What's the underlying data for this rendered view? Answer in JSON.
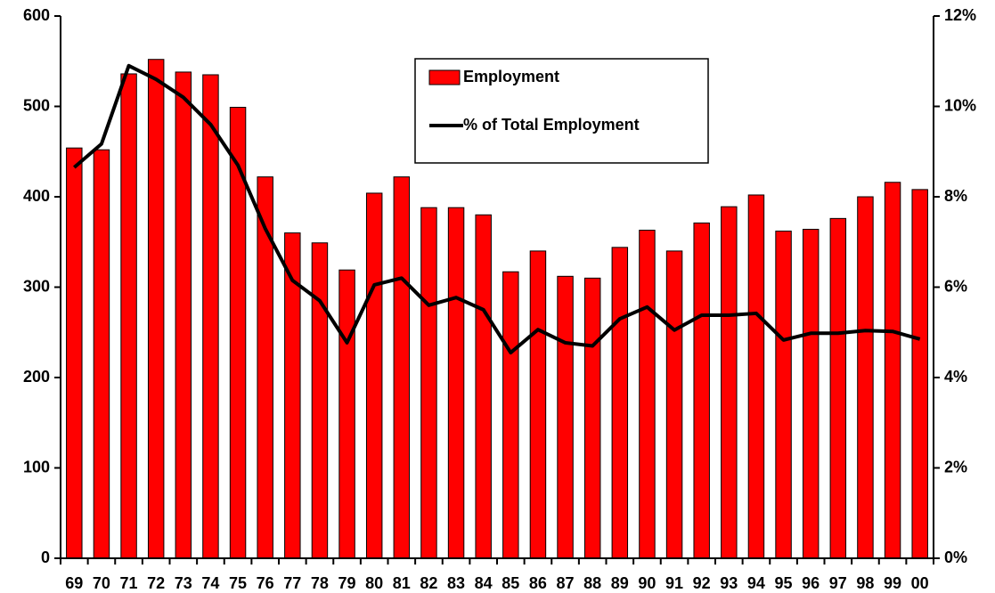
{
  "chart_data": {
    "type": "bar",
    "categories": [
      "69",
      "70",
      "71",
      "72",
      "73",
      "74",
      "75",
      "76",
      "77",
      "78",
      "79",
      "80",
      "81",
      "82",
      "83",
      "84",
      "85",
      "86",
      "87",
      "88",
      "89",
      "90",
      "91",
      "92",
      "93",
      "94",
      "95",
      "96",
      "97",
      "98",
      "99",
      "00"
    ],
    "series": [
      {
        "name": "Employment",
        "type": "bar",
        "color": "#ff0000",
        "values": [
          454,
          452,
          536,
          552,
          538,
          535,
          499,
          422,
          360,
          349,
          319,
          404,
          422,
          388,
          388,
          380,
          317,
          340,
          312,
          310,
          344,
          363,
          340,
          371,
          389,
          402,
          362,
          364,
          376,
          400,
          416,
          408
        ]
      },
      {
        "name": "% of Total Employment",
        "type": "line",
        "axis": "y2",
        "color": "#000000",
        "values": [
          8.65,
          9.17,
          10.9,
          10.6,
          10.2,
          9.6,
          8.7,
          7.3,
          6.15,
          5.7,
          4.77,
          6.05,
          6.2,
          5.6,
          5.77,
          5.5,
          4.55,
          5.06,
          4.77,
          4.7,
          5.3,
          5.56,
          5.05,
          5.38,
          5.38,
          5.42,
          4.83,
          4.98,
          4.98,
          5.04,
          5.02,
          4.85
        ]
      }
    ],
    "ylim": [
      0,
      600
    ],
    "yticks": [
      0,
      100,
      200,
      300,
      400,
      500,
      600
    ],
    "y2lim": [
      0,
      12
    ],
    "y2ticks": [
      {
        "value": 0,
        "label": "0%"
      },
      {
        "value": 2,
        "label": "2%"
      },
      {
        "value": 4,
        "label": "4%"
      },
      {
        "value": 6,
        "label": "6%"
      },
      {
        "value": 8,
        "label": "8%"
      },
      {
        "value": 10,
        "label": "10%"
      },
      {
        "value": 12,
        "label": "12%"
      }
    ],
    "grid": false,
    "legend": "top"
  }
}
